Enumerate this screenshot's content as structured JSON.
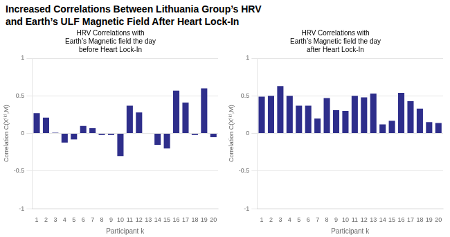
{
  "title": [
    "Increased Correlations Between Lithuania Group’s HRV",
    "and Earth’s ULF Magnetic Field After Heart Lock-In"
  ],
  "chart_data": [
    {
      "type": "bar",
      "subtitle": [
        "HRV Correlations with",
        "Earth’s Magnetic field the day",
        "before Heart Lock-In"
      ],
      "categories": [
        "1",
        "2",
        "3",
        "4",
        "5",
        "6",
        "7",
        "8",
        "9",
        "10",
        "11",
        "12",
        "13",
        "14",
        "15",
        "16",
        "17",
        "18",
        "19",
        "20"
      ],
      "values": [
        0.27,
        0.21,
        0.01,
        -0.12,
        -0.08,
        0.1,
        0.07,
        -0.02,
        -0.02,
        -0.3,
        0.37,
        0.28,
        0.0,
        -0.15,
        -0.2,
        0.57,
        0.41,
        -0.02,
        0.6,
        -0.05
      ],
      "color": "#2E2E8B",
      "xlabel": "Participant k",
      "ylabel": "Correlation C(X⁽ᵏ⁾,M)",
      "ylim": [
        -1,
        1
      ],
      "yticks": [
        -1,
        -0.5,
        0,
        0.5,
        1
      ],
      "grid": true
    },
    {
      "type": "bar",
      "subtitle": [
        "HRV Correlations with",
        "Earth’s Magnetic field the day",
        "after Heart Lock-In"
      ],
      "categories": [
        "1",
        "2",
        "3",
        "4",
        "5",
        "6",
        "7",
        "8",
        "9",
        "10",
        "11",
        "12",
        "13",
        "14",
        "15",
        "16",
        "17",
        "18",
        "19",
        "20"
      ],
      "values": [
        0.49,
        0.5,
        0.63,
        0.5,
        0.37,
        0.37,
        0.2,
        0.47,
        0.31,
        0.3,
        0.5,
        0.48,
        0.53,
        0.12,
        0.17,
        0.54,
        0.43,
        0.33,
        0.15,
        0.14
      ],
      "color": "#2E2E8B",
      "xlabel": "Participant k",
      "ylabel": "Correlation C(X⁽ᵏ⁾,M)",
      "ylim": [
        -1,
        1
      ],
      "yticks": [
        -1,
        -0.5,
        0,
        0.5,
        1
      ],
      "grid": true
    }
  ]
}
